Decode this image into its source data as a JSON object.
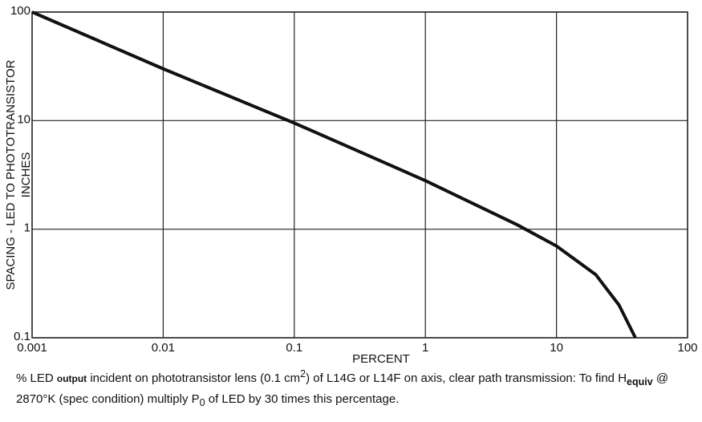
{
  "chart_data": {
    "type": "line",
    "x_label": "PERCENT",
    "y_label": [
      "SPACING - LED TO PHOTOTRANSISTOR",
      "INCHES"
    ],
    "x": [
      0.001,
      0.01,
      0.1,
      1,
      5,
      10,
      20,
      30,
      40
    ],
    "series": [
      {
        "color": "#111111",
        "values": [
          100,
          30,
          9.5,
          2.8,
          1.1,
          0.7,
          0.38,
          0.2,
          0.1
        ]
      }
    ],
    "xlim": [
      0.001,
      100
    ],
    "xticks": [
      0.001,
      0.01,
      0.1,
      1,
      10,
      100
    ],
    "ylim": [
      0.1,
      100
    ],
    "yticks": [
      0.1,
      1,
      10,
      100
    ],
    "log_x": true,
    "log_y": true,
    "grid": true,
    "caption": [
      "% LED ",
      "output",
      " incident on phototransistor lens (0.1 cm",
      "2",
      ") of L14G or L14F on axis, clear path transmission:  To find H",
      "equiv",
      " @ 2870°K (spec condition) multiply P",
      "0",
      " of LED by 30 times this percentage."
    ]
  }
}
